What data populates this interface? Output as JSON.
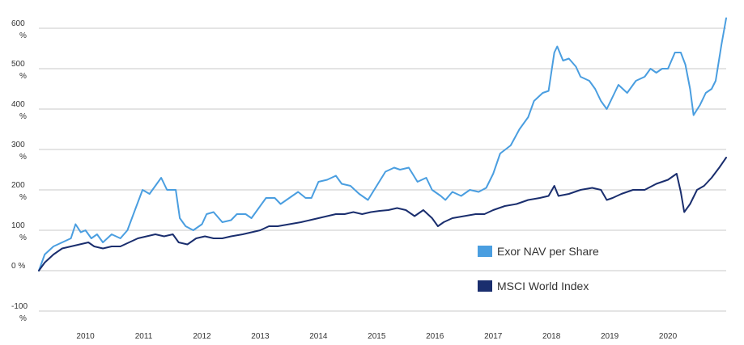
{
  "chart_data": {
    "type": "line",
    "title": "",
    "xlabel": "",
    "ylabel": "",
    "ylim": [
      -100,
      600
    ],
    "xlim": [
      2009.2,
      2021.0
    ],
    "grid": "horizontal",
    "legend_position": "bottom-right",
    "y_ticks": [
      {
        "value": 600,
        "top": "600",
        "bottom": "%"
      },
      {
        "value": 500,
        "top": "500",
        "bottom": "%"
      },
      {
        "value": 400,
        "top": "400",
        "bottom": "%"
      },
      {
        "value": 300,
        "top": "300",
        "bottom": "%"
      },
      {
        "value": 200,
        "top": "200",
        "bottom": "%"
      },
      {
        "value": 100,
        "top": "100",
        "bottom": "%"
      },
      {
        "value": 0,
        "top": "0 %",
        "bottom": ""
      },
      {
        "value": -100,
        "top": "-100",
        "bottom": "%"
      }
    ],
    "x_ticks": [
      {
        "value": 2010,
        "label": "2010"
      },
      {
        "value": 2011,
        "label": "2011"
      },
      {
        "value": 2012,
        "label": "2012"
      },
      {
        "value": 2013,
        "label": "2013"
      },
      {
        "value": 2014,
        "label": "2014"
      },
      {
        "value": 2015,
        "label": "2015"
      },
      {
        "value": 2016,
        "label": "2016"
      },
      {
        "value": 2017,
        "label": "2017"
      },
      {
        "value": 2018,
        "label": "2018"
      },
      {
        "value": 2019,
        "label": "2019"
      },
      {
        "value": 2020,
        "label": "2020"
      }
    ],
    "series": [
      {
        "name": "Exor NAV per Share",
        "color": "#4a9ee0",
        "points": [
          [
            2009.2,
            0
          ],
          [
            2009.3,
            40
          ],
          [
            2009.45,
            60
          ],
          [
            2009.6,
            70
          ],
          [
            2009.75,
            80
          ],
          [
            2009.83,
            115
          ],
          [
            2009.92,
            95
          ],
          [
            2010.0,
            100
          ],
          [
            2010.1,
            80
          ],
          [
            2010.2,
            90
          ],
          [
            2010.3,
            70
          ],
          [
            2010.45,
            90
          ],
          [
            2010.6,
            80
          ],
          [
            2010.72,
            100
          ],
          [
            2010.85,
            150
          ],
          [
            2010.98,
            200
          ],
          [
            2011.1,
            190
          ],
          [
            2011.2,
            210
          ],
          [
            2011.3,
            230
          ],
          [
            2011.4,
            200
          ],
          [
            2011.55,
            200
          ],
          [
            2011.62,
            130
          ],
          [
            2011.72,
            110
          ],
          [
            2011.85,
            100
          ],
          [
            2012.0,
            115
          ],
          [
            2012.08,
            140
          ],
          [
            2012.2,
            145
          ],
          [
            2012.35,
            120
          ],
          [
            2012.5,
            125
          ],
          [
            2012.6,
            140
          ],
          [
            2012.75,
            140
          ],
          [
            2012.85,
            130
          ],
          [
            2012.95,
            150
          ],
          [
            2013.1,
            180
          ],
          [
            2013.25,
            180
          ],
          [
            2013.35,
            165
          ],
          [
            2013.5,
            180
          ],
          [
            2013.65,
            195
          ],
          [
            2013.78,
            180
          ],
          [
            2013.88,
            180
          ],
          [
            2014.0,
            220
          ],
          [
            2014.15,
            225
          ],
          [
            2014.3,
            235
          ],
          [
            2014.4,
            215
          ],
          [
            2014.55,
            210
          ],
          [
            2014.7,
            190
          ],
          [
            2014.85,
            175
          ],
          [
            2015.0,
            210
          ],
          [
            2015.15,
            245
          ],
          [
            2015.3,
            255
          ],
          [
            2015.4,
            250
          ],
          [
            2015.55,
            255
          ],
          [
            2015.7,
            220
          ],
          [
            2015.85,
            230
          ],
          [
            2015.95,
            200
          ],
          [
            2016.1,
            185
          ],
          [
            2016.18,
            175
          ],
          [
            2016.3,
            195
          ],
          [
            2016.45,
            185
          ],
          [
            2016.6,
            200
          ],
          [
            2016.75,
            195
          ],
          [
            2016.88,
            205
          ],
          [
            2017.0,
            240
          ],
          [
            2017.12,
            290
          ],
          [
            2017.3,
            310
          ],
          [
            2017.45,
            350
          ],
          [
            2017.6,
            380
          ],
          [
            2017.7,
            420
          ],
          [
            2017.85,
            440
          ],
          [
            2017.95,
            445
          ],
          [
            2018.05,
            540
          ],
          [
            2018.1,
            555
          ],
          [
            2018.2,
            520
          ],
          [
            2018.3,
            525
          ],
          [
            2018.42,
            505
          ],
          [
            2018.5,
            480
          ],
          [
            2018.65,
            470
          ],
          [
            2018.75,
            450
          ],
          [
            2018.85,
            420
          ],
          [
            2018.95,
            400
          ],
          [
            2019.05,
            430
          ],
          [
            2019.15,
            460
          ],
          [
            2019.3,
            440
          ],
          [
            2019.45,
            470
          ],
          [
            2019.6,
            480
          ],
          [
            2019.7,
            500
          ],
          [
            2019.8,
            490
          ],
          [
            2019.9,
            500
          ],
          [
            2020.0,
            500
          ],
          [
            2020.12,
            540
          ],
          [
            2020.22,
            540
          ],
          [
            2020.3,
            510
          ],
          [
            2020.38,
            450
          ],
          [
            2020.44,
            385
          ],
          [
            2020.55,
            410
          ],
          [
            2020.65,
            440
          ],
          [
            2020.75,
            450
          ],
          [
            2020.82,
            470
          ],
          [
            2020.92,
            560
          ],
          [
            2021.0,
            625
          ]
        ]
      },
      {
        "name": "MSCI World Index",
        "color": "#1a2e6e",
        "points": [
          [
            2009.2,
            0
          ],
          [
            2009.3,
            20
          ],
          [
            2009.45,
            40
          ],
          [
            2009.6,
            55
          ],
          [
            2009.75,
            60
          ],
          [
            2009.9,
            65
          ],
          [
            2010.05,
            70
          ],
          [
            2010.15,
            60
          ],
          [
            2010.3,
            55
          ],
          [
            2010.45,
            60
          ],
          [
            2010.6,
            60
          ],
          [
            2010.75,
            70
          ],
          [
            2010.9,
            80
          ],
          [
            2011.05,
            85
          ],
          [
            2011.2,
            90
          ],
          [
            2011.35,
            85
          ],
          [
            2011.5,
            90
          ],
          [
            2011.6,
            70
          ],
          [
            2011.75,
            65
          ],
          [
            2011.9,
            80
          ],
          [
            2012.05,
            85
          ],
          [
            2012.2,
            80
          ],
          [
            2012.35,
            80
          ],
          [
            2012.5,
            85
          ],
          [
            2012.7,
            90
          ],
          [
            2012.85,
            95
          ],
          [
            2013.0,
            100
          ],
          [
            2013.15,
            110
          ],
          [
            2013.3,
            110
          ],
          [
            2013.5,
            115
          ],
          [
            2013.7,
            120
          ],
          [
            2013.85,
            125
          ],
          [
            2014.0,
            130
          ],
          [
            2014.15,
            135
          ],
          [
            2014.3,
            140
          ],
          [
            2014.45,
            140
          ],
          [
            2014.6,
            145
          ],
          [
            2014.75,
            140
          ],
          [
            2014.9,
            145
          ],
          [
            2015.05,
            148
          ],
          [
            2015.2,
            150
          ],
          [
            2015.35,
            155
          ],
          [
            2015.5,
            150
          ],
          [
            2015.65,
            135
          ],
          [
            2015.8,
            150
          ],
          [
            2015.95,
            130
          ],
          [
            2016.05,
            110
          ],
          [
            2016.15,
            120
          ],
          [
            2016.3,
            130
          ],
          [
            2016.5,
            135
          ],
          [
            2016.7,
            140
          ],
          [
            2016.85,
            140
          ],
          [
            2017.0,
            150
          ],
          [
            2017.2,
            160
          ],
          [
            2017.4,
            165
          ],
          [
            2017.6,
            175
          ],
          [
            2017.8,
            180
          ],
          [
            2017.95,
            185
          ],
          [
            2018.05,
            210
          ],
          [
            2018.12,
            185
          ],
          [
            2018.3,
            190
          ],
          [
            2018.5,
            200
          ],
          [
            2018.7,
            205
          ],
          [
            2018.85,
            200
          ],
          [
            2018.95,
            175
          ],
          [
            2019.05,
            180
          ],
          [
            2019.2,
            190
          ],
          [
            2019.4,
            200
          ],
          [
            2019.6,
            200
          ],
          [
            2019.8,
            215
          ],
          [
            2020.0,
            225
          ],
          [
            2020.15,
            240
          ],
          [
            2020.22,
            195
          ],
          [
            2020.28,
            145
          ],
          [
            2020.38,
            165
          ],
          [
            2020.5,
            200
          ],
          [
            2020.62,
            210
          ],
          [
            2020.75,
            230
          ],
          [
            2020.88,
            255
          ],
          [
            2021.0,
            280
          ]
        ]
      }
    ]
  }
}
